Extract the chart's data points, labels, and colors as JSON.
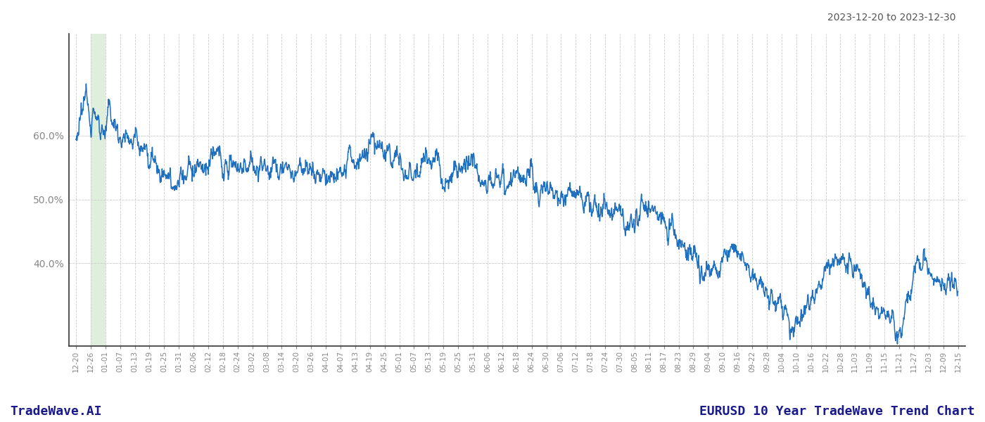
{
  "title_right": "2023-12-20 to 2023-12-30",
  "footer_left": "TradeWave.AI",
  "footer_right": "EURUSD 10 Year TradeWave Trend Chart",
  "y_ticks": [
    0.4,
    0.5,
    0.6
  ],
  "ylim": [
    0.27,
    0.76
  ],
  "background_color": "#ffffff",
  "grid_color": "#cccccc",
  "line_color": "#1f6fbf",
  "highlight_color": "#d6ecd2",
  "x_labels": [
    "12-20",
    "12-26",
    "01-01",
    "01-07",
    "01-13",
    "01-19",
    "01-25",
    "01-31",
    "02-06",
    "02-12",
    "02-18",
    "02-24",
    "03-02",
    "03-08",
    "03-14",
    "03-20",
    "03-26",
    "04-01",
    "04-07",
    "04-13",
    "04-19",
    "04-25",
    "05-01",
    "05-07",
    "05-13",
    "05-19",
    "05-25",
    "05-31",
    "06-06",
    "06-12",
    "06-18",
    "06-24",
    "06-30",
    "07-06",
    "07-12",
    "07-18",
    "07-24",
    "07-30",
    "08-05",
    "08-11",
    "08-17",
    "08-23",
    "08-29",
    "09-04",
    "09-10",
    "09-16",
    "09-22",
    "09-28",
    "10-04",
    "10-10",
    "10-16",
    "10-22",
    "10-28",
    "11-03",
    "11-09",
    "11-15",
    "11-21",
    "11-27",
    "12-03",
    "12-09",
    "12-15"
  ],
  "spine_color": "#333333",
  "tick_label_color": "#888888",
  "footer_color": "#1a1a8c",
  "title_color": "#555555"
}
